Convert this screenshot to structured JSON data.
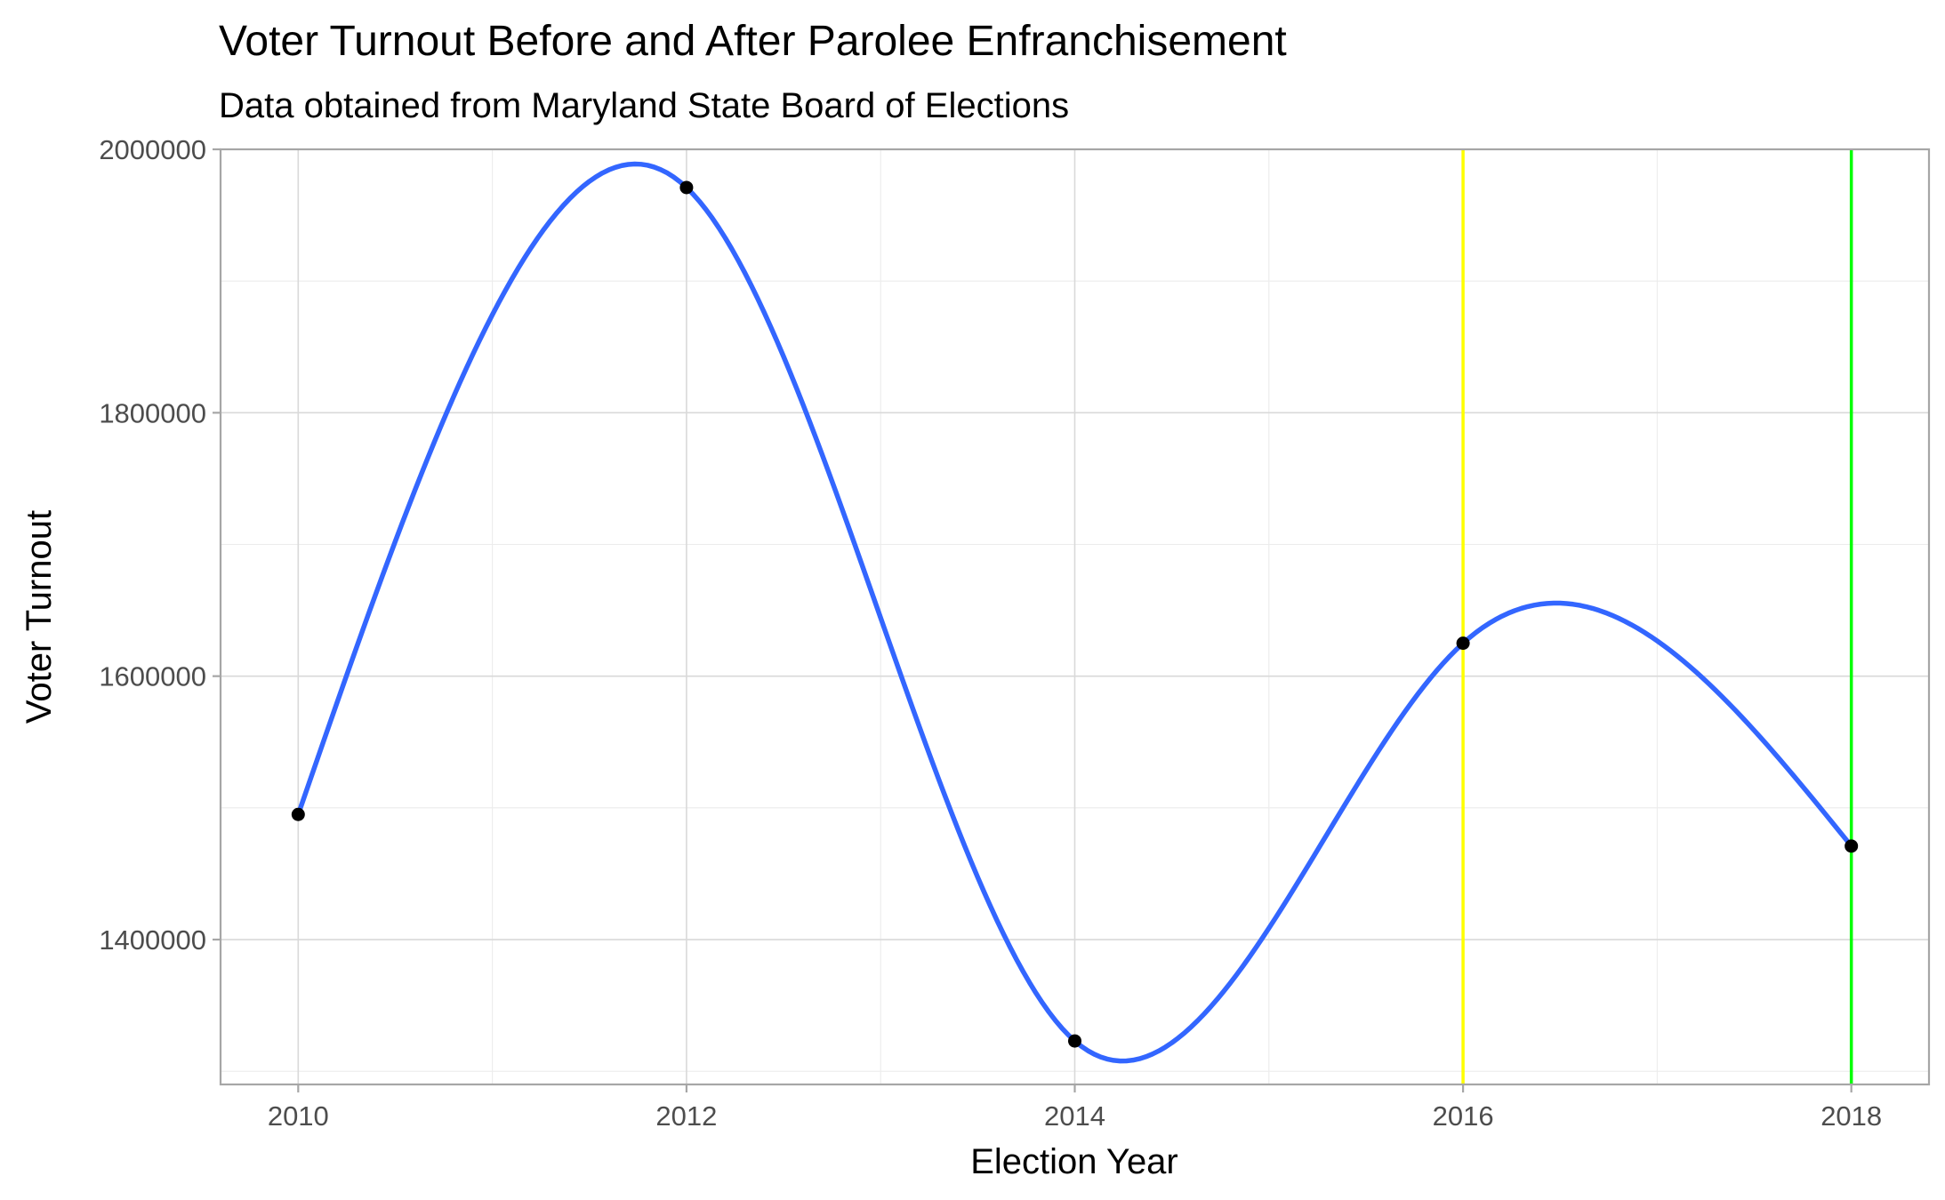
{
  "chart_data": {
    "type": "line",
    "title": "Voter Turnout Before and After Parolee Enfranchisement",
    "subtitle": "Data obtained from Maryland State Board of Elections",
    "xlabel": "Election Year",
    "ylabel": "Voter Turnout",
    "x": [
      2010,
      2012,
      2014,
      2016,
      2018
    ],
    "series": [
      {
        "values": [
          1495000,
          1971000,
          1323000,
          1625000,
          1471000
        ],
        "color": "#3366ff",
        "style": "smoothed line with points"
      }
    ],
    "point_color": "#000000",
    "xlim": [
      2009.6,
      2018.4
    ],
    "ylim": [
      1290000,
      2000000
    ],
    "x_ticks": [
      "2010",
      "2012",
      "2014",
      "2016",
      "2018"
    ],
    "y_ticks": [
      "1400000",
      "1600000",
      "1800000",
      "2000000"
    ],
    "x_tick_values": [
      2010,
      2012,
      2014,
      2016,
      2018
    ],
    "y_tick_values": [
      1400000,
      1600000,
      1800000,
      2000000
    ],
    "reference_lines": [
      {
        "x": 2016,
        "color": "#ffff00"
      },
      {
        "x": 2018,
        "color": "#00ff00"
      }
    ],
    "grid": true,
    "theme": "light"
  }
}
